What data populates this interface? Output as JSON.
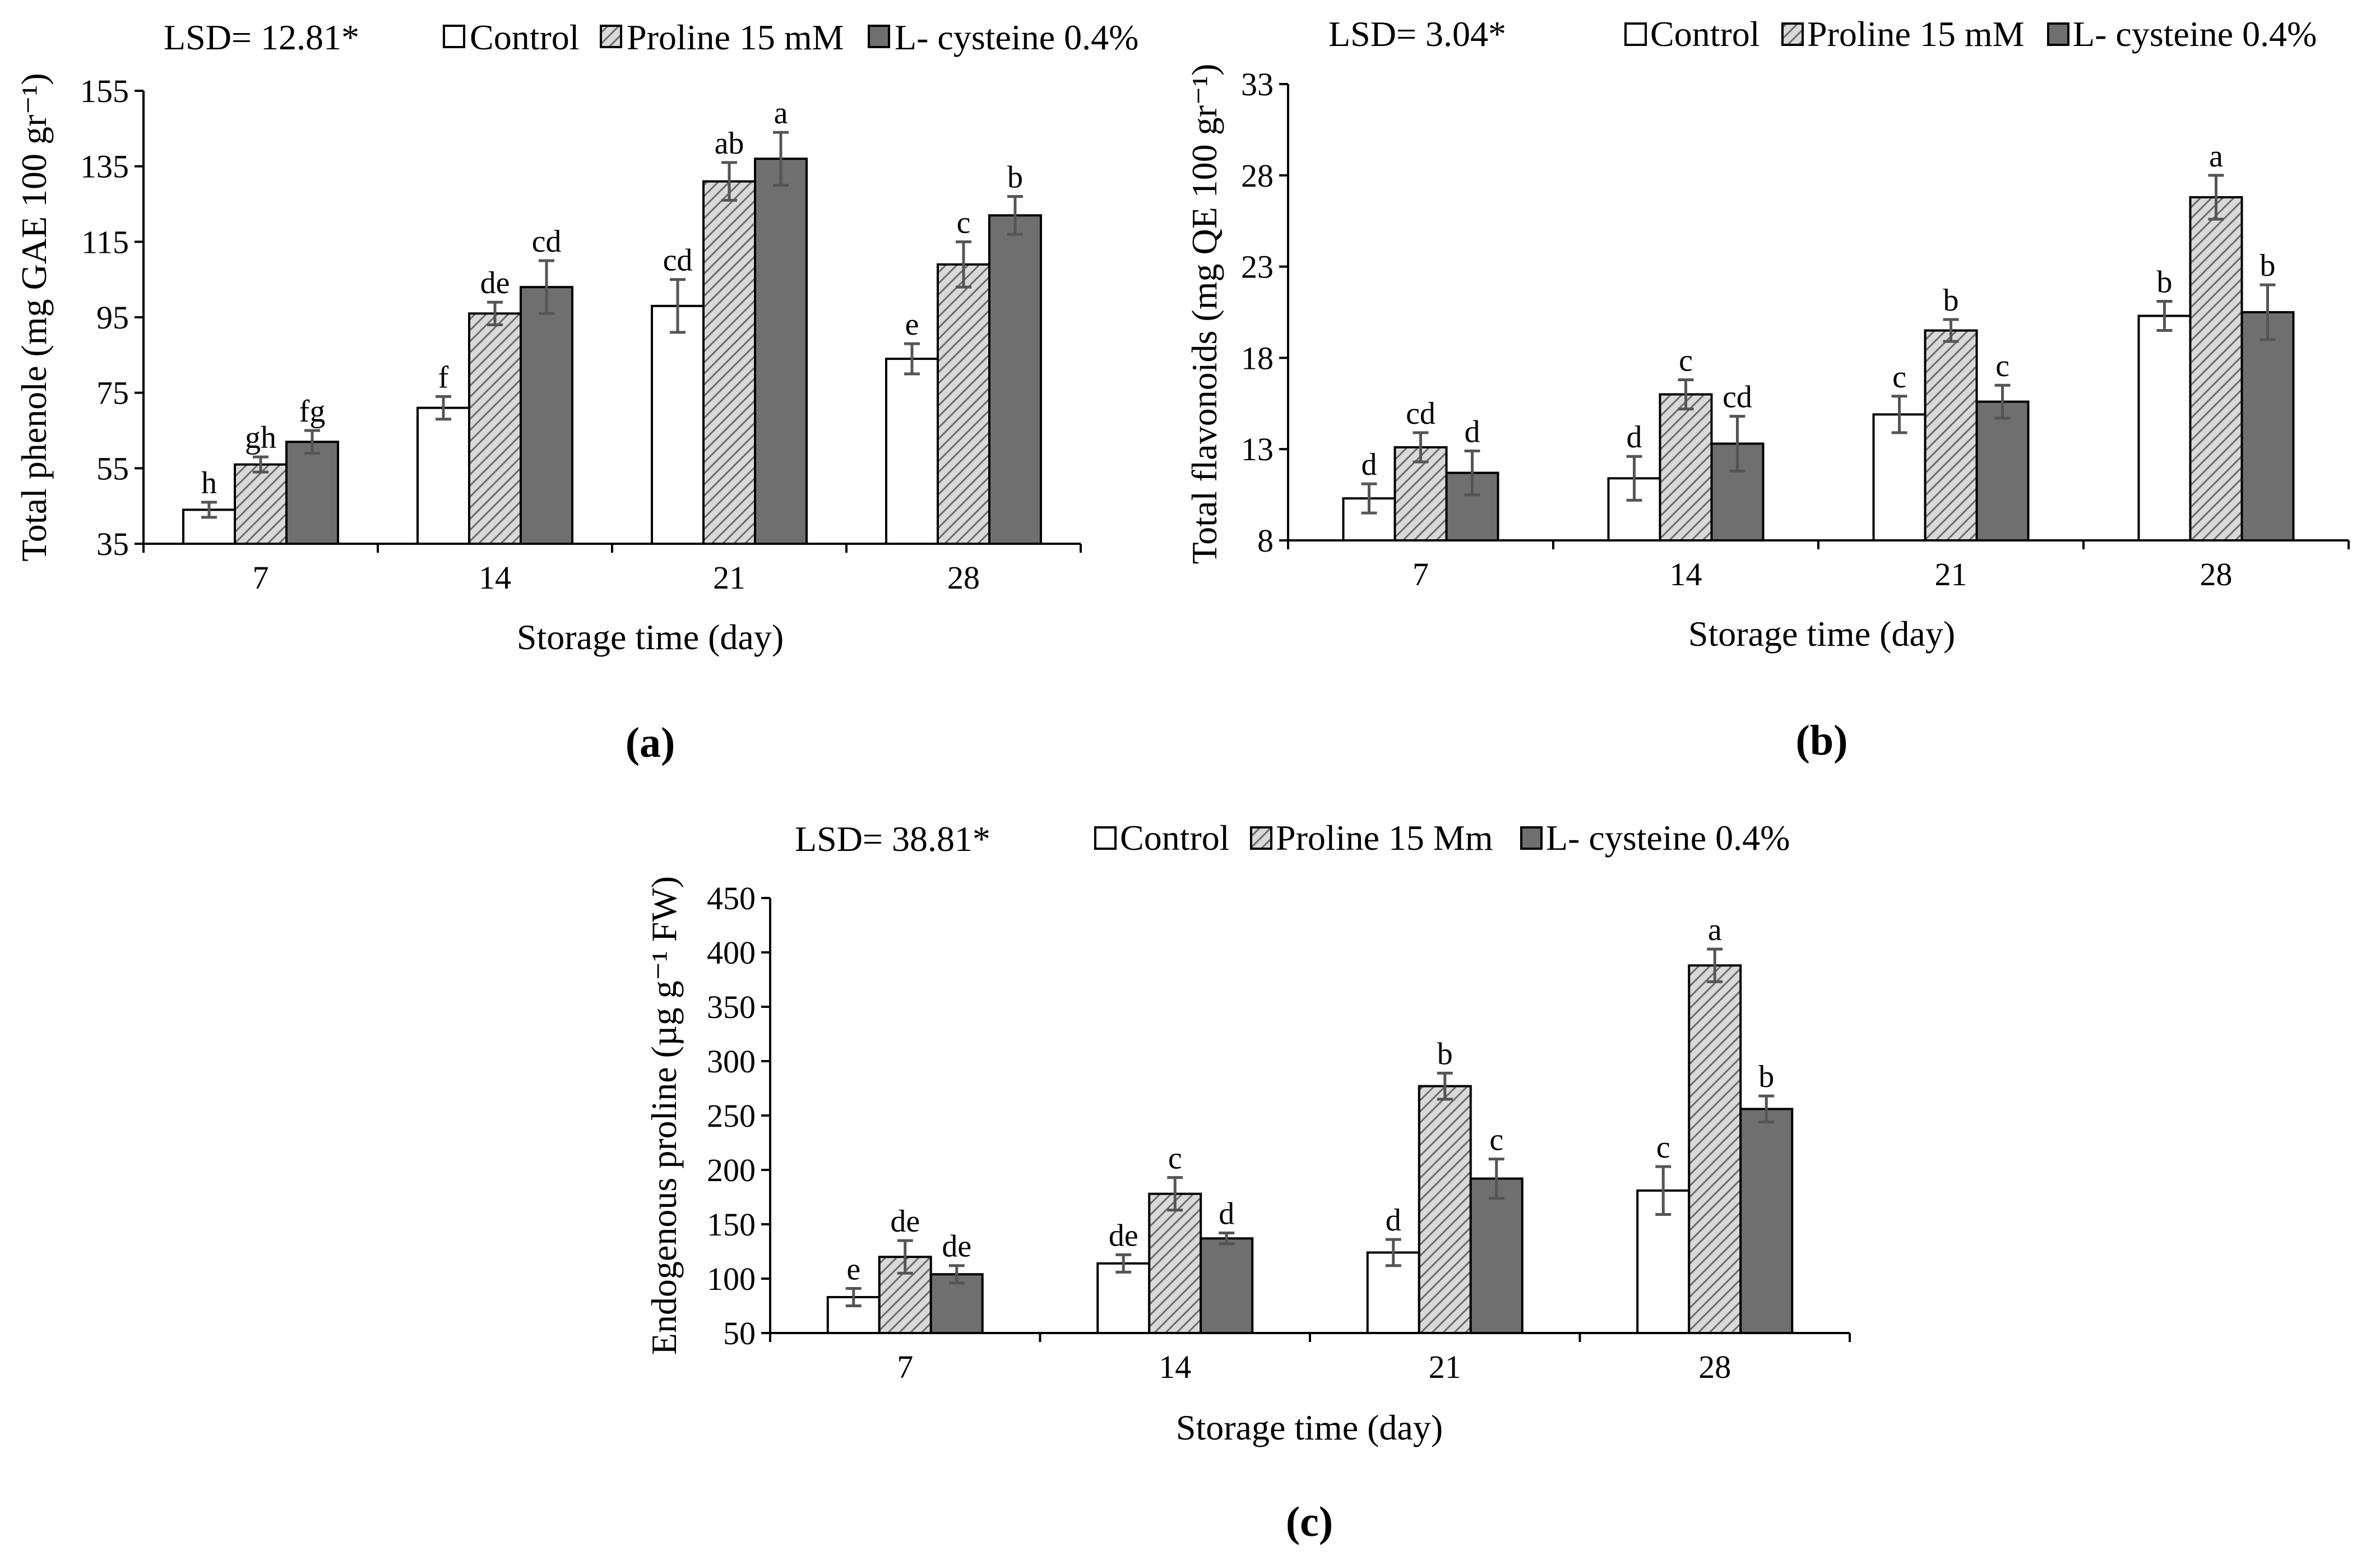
{
  "colors": {
    "control": "#ffffff",
    "proline": "#bdbdbd",
    "cysteine": "#6f6f6f",
    "axis": "#000000",
    "errorbar": "#555555"
  },
  "chart_data": [
    {
      "type": "bar",
      "panel_label": "(a)",
      "lsd": "LSD= 12.81*",
      "xlabel": "Storage time (day)",
      "ylabel": "Total phenole (mg GAE 100 gr⁻¹)",
      "categories": [
        "7",
        "14",
        "21",
        "28"
      ],
      "ylim": [
        35,
        155
      ],
      "yticks": [
        35,
        55,
        75,
        95,
        115,
        135,
        155
      ],
      "grid": false,
      "legend": "top",
      "series": [
        {
          "name": "Control",
          "key": "control",
          "values": [
            44,
            71,
            98,
            84
          ],
          "errors": [
            2,
            3,
            7,
            4
          ],
          "letters": [
            "h",
            "f",
            "cd",
            "e"
          ]
        },
        {
          "name": "Proline 15 mM",
          "key": "proline",
          "values": [
            56,
            96,
            131,
            109
          ],
          "errors": [
            2,
            3,
            5,
            6
          ],
          "letters": [
            "gh",
            "de",
            "ab",
            "c"
          ]
        },
        {
          "name": "L- cysteine 0.4%",
          "key": "cysteine",
          "values": [
            62,
            103,
            137,
            122
          ],
          "errors": [
            3,
            7,
            7,
            5
          ],
          "letters": [
            "fg",
            "cd",
            "a",
            "b"
          ]
        }
      ]
    },
    {
      "type": "bar",
      "panel_label": "(b)",
      "lsd": "LSD= 3.04*",
      "xlabel": "Storage time (day)",
      "ylabel": "Total flavonoids (mg QE 100 gr⁻¹)",
      "categories": [
        "7",
        "14",
        "21",
        "28"
      ],
      "ylim": [
        8,
        33
      ],
      "yticks": [
        8,
        13,
        18,
        23,
        28,
        33
      ],
      "grid": false,
      "legend": "top",
      "series": [
        {
          "name": "Control",
          "key": "control",
          "values": [
            10.3,
            11.4,
            14.9,
            20.3
          ],
          "errors": [
            0.8,
            1.2,
            1.0,
            0.8
          ],
          "letters": [
            "d",
            "d",
            "c",
            "b"
          ]
        },
        {
          "name": "Proline 15 mM",
          "key": "proline",
          "values": [
            13.1,
            16.0,
            19.5,
            26.8
          ],
          "errors": [
            0.8,
            0.8,
            0.6,
            1.2
          ],
          "letters": [
            "cd",
            "c",
            "b",
            "a"
          ]
        },
        {
          "name": "L- cysteine 0.4%",
          "key": "cysteine",
          "values": [
            11.7,
            13.3,
            15.6,
            20.5
          ],
          "errors": [
            1.2,
            1.5,
            0.9,
            1.5
          ],
          "letters": [
            "d",
            "cd",
            "c",
            "b"
          ]
        }
      ]
    },
    {
      "type": "bar",
      "panel_label": "(c)",
      "lsd": "LSD= 38.81*",
      "xlabel": "Storage time (day)",
      "ylabel": "Endogenous proline (µg g⁻¹ FW)",
      "categories": [
        "7",
        "14",
        "21",
        "28"
      ],
      "ylim": [
        50,
        450
      ],
      "yticks": [
        50,
        100,
        150,
        200,
        250,
        300,
        350,
        400,
        450
      ],
      "grid": false,
      "legend": "top",
      "series": [
        {
          "name": "Control",
          "key": "control",
          "values": [
            83,
            114,
            124,
            181
          ],
          "errors": [
            8,
            8,
            12,
            22
          ],
          "letters": [
            "e",
            "de",
            "d",
            "c"
          ]
        },
        {
          "name": "Proline 15 Mm",
          "key": "proline",
          "values": [
            120,
            178,
            277,
            388
          ],
          "errors": [
            15,
            15,
            12,
            15
          ],
          "letters": [
            "de",
            "c",
            "b",
            "a"
          ]
        },
        {
          "name": "L- cysteine 0.4%",
          "key": "cysteine",
          "values": [
            104,
            137,
            192,
            256
          ],
          "errors": [
            8,
            5,
            18,
            12
          ],
          "letters": [
            "de",
            "d",
            "c",
            "b"
          ]
        }
      ]
    }
  ]
}
